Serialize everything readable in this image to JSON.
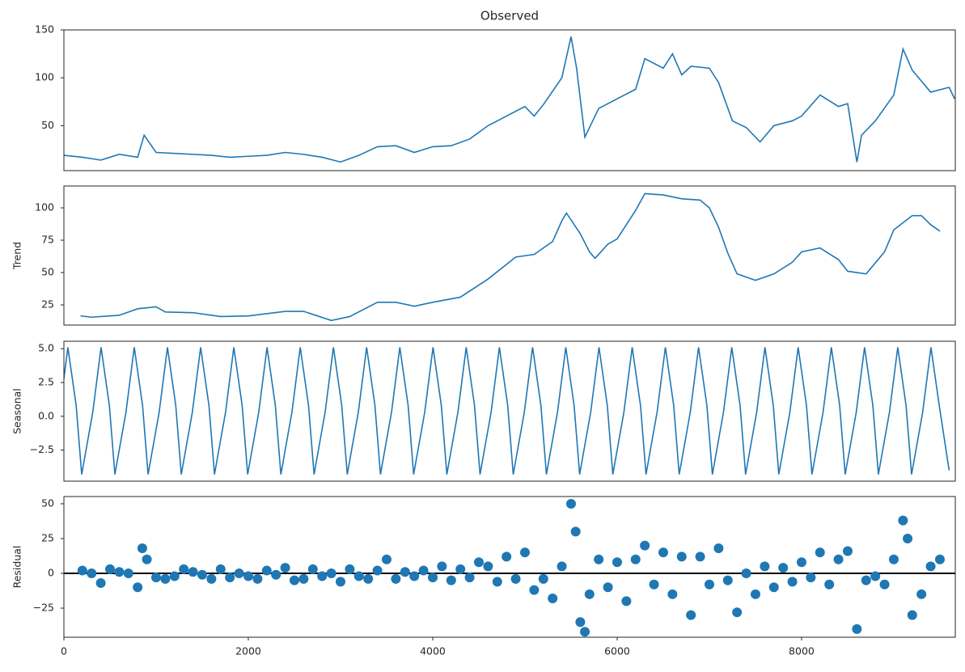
{
  "chart_data": [
    {
      "type": "line",
      "title": "Observed",
      "color": "#1f77b4",
      "xlim": [
        0,
        9667
      ],
      "ylim": [
        3,
        150
      ],
      "yticks": [
        50,
        100,
        150
      ],
      "x": [
        0,
        200,
        400,
        600,
        800,
        870,
        1000,
        1200,
        1400,
        1600,
        1800,
        2000,
        2200,
        2400,
        2600,
        2800,
        3000,
        3200,
        3400,
        3600,
        3800,
        4000,
        4200,
        4400,
        4600,
        4800,
        5000,
        5100,
        5200,
        5400,
        5500,
        5560,
        5650,
        5800,
        6000,
        6200,
        6300,
        6500,
        6600,
        6700,
        6800,
        7000,
        7100,
        7250,
        7400,
        7550,
        7700,
        7900,
        8000,
        8200,
        8400,
        8500,
        8600,
        8650,
        8800,
        9000,
        9100,
        9200,
        9400,
        9600,
        9660
      ],
      "values": [
        19,
        17,
        14,
        20,
        17,
        40,
        22,
        21,
        20,
        19,
        17,
        18,
        19,
        22,
        20,
        17,
        12,
        19,
        28,
        29,
        22,
        28,
        29,
        36,
        50,
        60,
        70,
        60,
        72,
        100,
        143,
        110,
        38,
        68,
        78,
        88,
        120,
        110,
        125,
        103,
        112,
        110,
        95,
        55,
        48,
        33,
        50,
        55,
        60,
        82,
        70,
        73,
        12,
        40,
        55,
        82,
        130,
        108,
        85,
        90,
        78
      ]
    },
    {
      "type": "line",
      "ylabel": "Trend",
      "color": "#1f77b4",
      "xlim": [
        0,
        9667
      ],
      "ylim": [
        9.4,
        116.9
      ],
      "yticks": [
        25,
        50,
        75,
        100
      ],
      "x": [
        180,
        300,
        600,
        800,
        1000,
        1100,
        1400,
        1700,
        2000,
        2400,
        2600,
        2900,
        3100,
        3400,
        3600,
        3800,
        4000,
        4300,
        4600,
        4900,
        5100,
        5300,
        5400,
        5450,
        5600,
        5700,
        5760,
        5900,
        6000,
        6200,
        6300,
        6500,
        6700,
        6900,
        7000,
        7100,
        7200,
        7300,
        7500,
        7700,
        7900,
        8000,
        8200,
        8400,
        8500,
        8700,
        8900,
        9000,
        9200,
        9300,
        9400,
        9500
      ],
      "values": [
        16.5,
        15.5,
        17,
        22,
        23.5,
        19.5,
        19,
        16,
        16.5,
        20,
        20,
        13,
        16,
        27,
        27,
        24,
        27,
        31,
        45,
        62,
        64,
        74,
        90,
        96,
        80,
        66,
        61,
        72,
        76,
        98,
        111,
        110,
        107,
        106,
        100,
        85,
        65,
        49,
        44,
        49,
        58,
        66,
        69,
        60,
        51,
        49,
        66,
        83,
        94,
        94,
        87,
        82
      ]
    },
    {
      "type": "line",
      "ylabel": "Seasonal",
      "color": "#1f77b4",
      "xlim": [
        0,
        9667
      ],
      "ylim": [
        -4.8,
        5.55
      ],
      "yticks": [
        {
          "value": -2.5,
          "label": "−2.5"
        },
        {
          "value": 0,
          "label": "0.0"
        },
        2.5,
        {
          "value": 5,
          "label": "5.0"
        }
      ],
      "x": [
        0,
        43,
        133,
        193,
        313,
        403,
        493,
        553,
        673,
        763,
        853,
        913,
        1033,
        1123,
        1213,
        1273,
        1393,
        1483,
        1573,
        1633,
        1753,
        1843,
        1933,
        1993,
        2113,
        2203,
        2293,
        2353,
        2473,
        2563,
        2653,
        2713,
        2833,
        2923,
        3013,
        3073,
        3193,
        3283,
        3373,
        3433,
        3553,
        3643,
        3733,
        3793,
        3913,
        4003,
        4093,
        4153,
        4273,
        4363,
        4453,
        4513,
        4633,
        4723,
        4813,
        4873,
        4993,
        5083,
        5173,
        5233,
        5353,
        5443,
        5533,
        5593,
        5713,
        5803,
        5893,
        5953,
        6073,
        6163,
        6253,
        6313,
        6433,
        6523,
        6613,
        6673,
        6793,
        6883,
        6973,
        7033,
        7153,
        7243,
        7333,
        7393,
        7513,
        7603,
        7693,
        7753,
        7873,
        7963,
        8053,
        8113,
        8233,
        8323,
        8413,
        8473,
        8593,
        8683,
        8773,
        8833,
        8953,
        9043,
        9133,
        9193,
        9313,
        9403,
        9493,
        9600
      ],
      "values": [
        2.8,
        5.1,
        0.8,
        -4.3,
        0.3,
        5.1,
        0.8,
        -4.3,
        0.3,
        5.1,
        0.8,
        -4.3,
        0.3,
        5.1,
        0.8,
        -4.3,
        0.3,
        5.1,
        0.8,
        -4.3,
        0.3,
        5.1,
        0.8,
        -4.3,
        0.3,
        5.1,
        0.8,
        -4.3,
        0.3,
        5.1,
        0.8,
        -4.3,
        0.3,
        5.1,
        0.8,
        -4.3,
        0.3,
        5.1,
        0.8,
        -4.3,
        0.3,
        5.1,
        0.8,
        -4.3,
        0.3,
        5.1,
        0.8,
        -4.3,
        0.3,
        5.1,
        0.8,
        -4.3,
        0.3,
        5.1,
        0.8,
        -4.3,
        0.3,
        5.1,
        0.8,
        -4.3,
        0.3,
        5.1,
        0.8,
        -4.3,
        0.3,
        5.1,
        0.8,
        -4.3,
        0.3,
        5.1,
        0.8,
        -4.3,
        0.3,
        5.1,
        0.8,
        -4.3,
        0.3,
        5.1,
        0.8,
        -4.3,
        0.3,
        5.1,
        0.8,
        -4.3,
        0.3,
        5.1,
        0.8,
        -4.3,
        0.3,
        5.1,
        0.8,
        -4.3,
        0.3,
        5.1,
        0.8,
        -4.3,
        0.3,
        5.1,
        0.8,
        -4.3,
        0.3,
        5.1,
        0.8,
        -4.3,
        0.3,
        5.1,
        0.8,
        -4.0
      ]
    },
    {
      "type": "scatter",
      "ylabel": "Residual",
      "color": "#1f77b4",
      "hline": 0,
      "xlim": [
        0,
        9667
      ],
      "xticks": [
        0,
        2000,
        4000,
        6000,
        8000
      ],
      "ylim": [
        -45.9,
        55.2
      ],
      "yticks": [
        {
          "value": -25,
          "label": "−25"
        },
        0,
        25,
        50
      ],
      "x": [
        200,
        300,
        400,
        500,
        600,
        700,
        800,
        850,
        900,
        1000,
        1100,
        1200,
        1300,
        1400,
        1500,
        1600,
        1700,
        1800,
        1900,
        2000,
        2100,
        2200,
        2300,
        2400,
        2500,
        2600,
        2700,
        2800,
        2900,
        3000,
        3100,
        3200,
        3300,
        3400,
        3500,
        3600,
        3700,
        3800,
        3900,
        4000,
        4100,
        4200,
        4300,
        4400,
        4500,
        4600,
        4700,
        4800,
        4900,
        5000,
        5100,
        5200,
        5300,
        5400,
        5500,
        5550,
        5600,
        5650,
        5700,
        5800,
        5900,
        6000,
        6100,
        6200,
        6300,
        6400,
        6500,
        6600,
        6700,
        6800,
        6900,
        7000,
        7100,
        7200,
        7300,
        7400,
        7500,
        7600,
        7700,
        7800,
        7900,
        8000,
        8100,
        8200,
        8300,
        8400,
        8500,
        8600,
        8700,
        8800,
        8900,
        9000,
        9100,
        9150,
        9200,
        9300,
        9400,
        9500
      ],
      "values": [
        2,
        0,
        -7,
        3,
        1,
        0,
        -10,
        18,
        10,
        -3,
        -4,
        -2,
        3,
        1,
        -1,
        -4,
        3,
        -3,
        0,
        -2,
        -4,
        2,
        -1,
        4,
        -5,
        -4,
        3,
        -2,
        0,
        -6,
        3,
        -2,
        -4,
        2,
        10,
        -4,
        1,
        -2,
        2,
        -3,
        5,
        -5,
        3,
        -3,
        8,
        5,
        -6,
        12,
        -4,
        15,
        -12,
        -4,
        -18,
        5,
        50,
        30,
        -35,
        -42,
        -15,
        10,
        -10,
        8,
        -20,
        10,
        20,
        -8,
        15,
        -15,
        12,
        -30,
        12,
        -8,
        18,
        -5,
        -28,
        0,
        -15,
        5,
        -10,
        4,
        -6,
        8,
        -3,
        15,
        -8,
        10,
        16,
        -40,
        -5,
        -2,
        -8,
        10,
        38,
        25,
        -30,
        -15,
        5,
        10
      ]
    }
  ]
}
